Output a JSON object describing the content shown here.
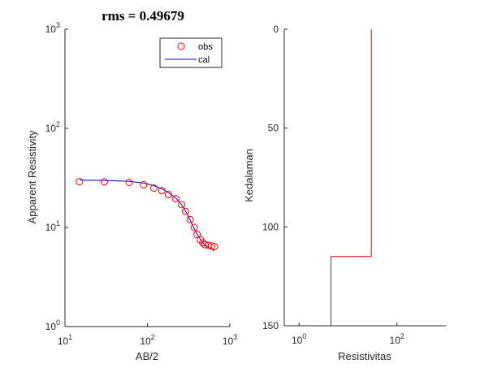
{
  "chart_data": [
    {
      "type": "scatter",
      "title": "rms = 0.49679",
      "xlabel": "AB/2",
      "ylabel": "Apparent Resistivity",
      "xscale": "log",
      "yscale": "log",
      "xlim": [
        10,
        1000
      ],
      "ylim": [
        1,
        1000
      ],
      "xticks": [
        10,
        100,
        1000
      ],
      "yticks": [
        1,
        10,
        100,
        1000
      ],
      "grid": false,
      "legend_position": "top-right",
      "series": [
        {
          "name": "obs",
          "style": "markers",
          "marker": "circle",
          "color": "#ff0000",
          "x": [
            15,
            30,
            60,
            90,
            120,
            150,
            180,
            220,
            260,
            290,
            330,
            370,
            400,
            440,
            470,
            500,
            550,
            600,
            650
          ],
          "y": [
            29,
            28.9,
            28.5,
            27,
            25,
            23.5,
            21.5,
            19.5,
            17,
            14.5,
            12,
            10,
            8.5,
            7.5,
            7,
            6.7,
            6.6,
            6.5,
            6.4
          ]
        },
        {
          "name": "cal",
          "style": "line",
          "color": "#0000cc",
          "x": [
            15,
            30,
            60,
            90,
            120,
            150,
            180,
            220,
            260,
            300,
            340,
            380,
            420,
            460,
            500,
            550,
            600,
            650
          ],
          "y": [
            30,
            29.8,
            29.2,
            28,
            26.4,
            24.5,
            22.5,
            19.8,
            17,
            14,
            11.3,
            9.3,
            8,
            7.2,
            6.7,
            6.3,
            6.1,
            5.8
          ]
        }
      ]
    },
    {
      "type": "line",
      "title": "",
      "xlabel": "Resistivitas",
      "ylabel": "Kedalaman",
      "xscale": "log",
      "xlim": [
        0.5,
        1000
      ],
      "xticks": [
        1,
        100
      ],
      "ylim": [
        0,
        150
      ],
      "yticks": [
        0,
        50,
        100,
        150
      ],
      "y_reversed": true,
      "grid": false,
      "series": [
        {
          "style": "step",
          "color": "#cc0000",
          "x": [
            30,
            30,
            4.5,
            4.5
          ],
          "y": [
            0,
            115,
            115,
            150
          ]
        }
      ]
    }
  ]
}
